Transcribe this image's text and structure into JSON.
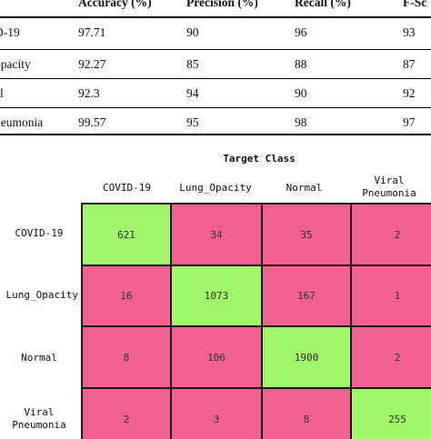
{
  "metrics_table": {
    "headers": [
      "Accuracy (%)",
      "Precision (%)",
      "Recall (%)",
      "F-Sc"
    ],
    "rows": [
      {
        "label": "D-19",
        "values": [
          "97.71",
          "90",
          "96",
          "93"
        ]
      },
      {
        "label": "opacity",
        "values": [
          "92.27",
          "85",
          "88",
          "87"
        ]
      },
      {
        "label": "al",
        "values": [
          "92.3",
          "94",
          "90",
          "92"
        ]
      },
      {
        "label": "neumonia",
        "values": [
          "99.57",
          "95",
          "98",
          "97"
        ]
      }
    ]
  },
  "chart_data": {
    "type": "heatmap",
    "title": "Target Class",
    "columns": [
      "COVID-19",
      "Lung_Opacity",
      "Normal",
      "Viral Pneumonia"
    ],
    "rows": [
      "COVID-19",
      "Lung_Opacity",
      "Normal",
      "Viral Pneumonia"
    ],
    "values": [
      [
        621,
        34,
        35,
        2
      ],
      [
        16,
        1073,
        167,
        1
      ],
      [
        8,
        106,
        1900,
        2
      ],
      [
        2,
        3,
        8,
        255
      ]
    ],
    "colors": {
      "diagonal": "#a0f569",
      "off_diagonal": "#f0618f"
    }
  }
}
